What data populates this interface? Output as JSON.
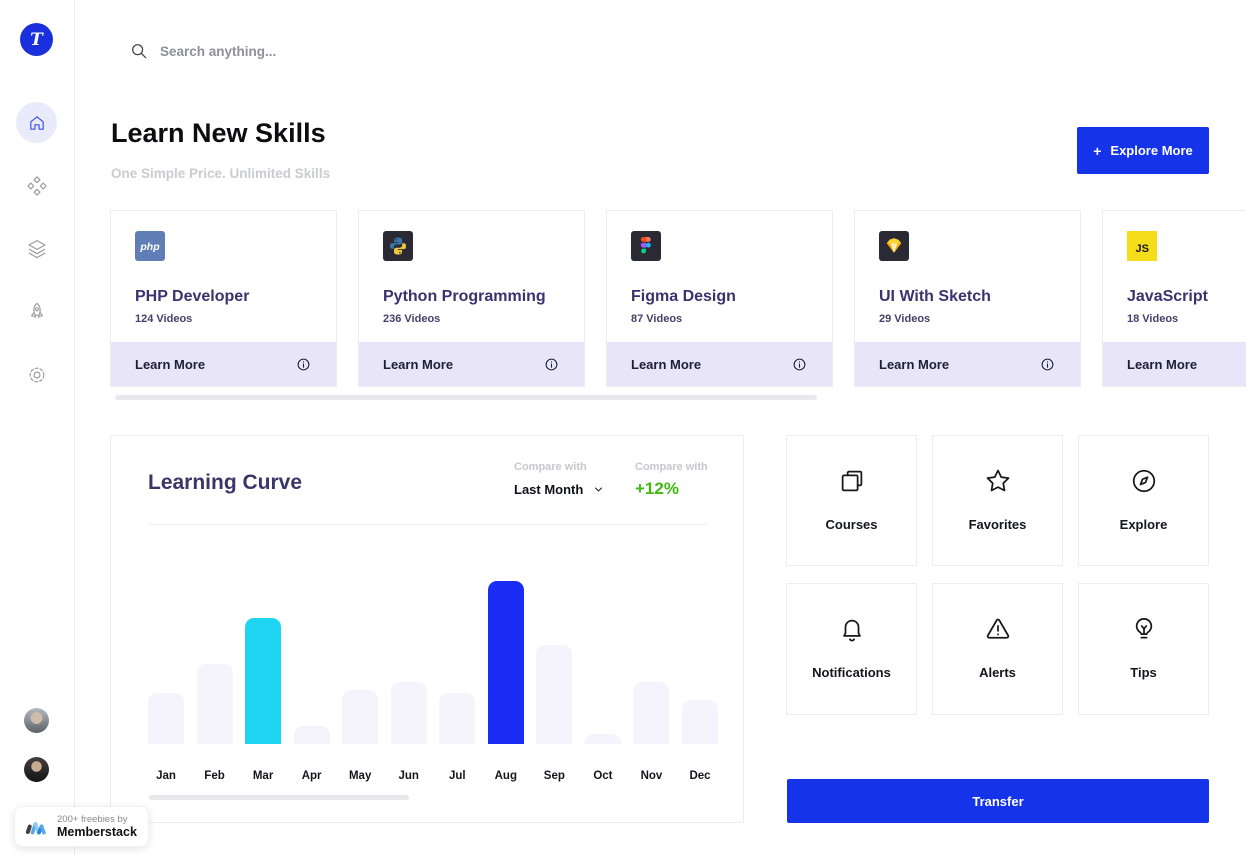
{
  "sidebar": {
    "logo_letter": "T",
    "nav": [
      {
        "icon": "home-icon",
        "active": true
      },
      {
        "icon": "categories-icon",
        "active": false
      },
      {
        "icon": "layers-icon",
        "active": false
      },
      {
        "icon": "rocket-icon",
        "active": false
      },
      {
        "icon": "settings-icon",
        "active": false
      }
    ],
    "avatars": [
      "user-avatar-1",
      "user-avatar-2"
    ]
  },
  "search": {
    "icon": "search-icon",
    "placeholder": "Search anything..."
  },
  "header": {
    "title": "Learn New Skills",
    "subtitle": "One Simple Price. Unlimited Skills",
    "explore_plus": "+",
    "explore_more_label": "Explore More"
  },
  "courses": {
    "learn_more_label": "Learn More",
    "info_icon": "info-icon",
    "items": [
      {
        "title": "PHP Developer",
        "videos": "124 Videos",
        "logo": "php"
      },
      {
        "title": "Python Programming",
        "videos": "236 Videos",
        "logo": "python"
      },
      {
        "title": "Figma Design",
        "videos": "87 Videos",
        "logo": "figma"
      },
      {
        "title": "UI With Sketch",
        "videos": "29 Videos",
        "logo": "sketch"
      },
      {
        "title": "JavaScript",
        "videos": "18 Videos",
        "logo": "js"
      }
    ]
  },
  "chart_data": {
    "type": "bar",
    "title": "Learning Curve",
    "compare_1": {
      "label": "Compare with",
      "value": "Last Month",
      "icon": "chevron-down-icon"
    },
    "compare_2": {
      "label": "Compare with",
      "value": "+12%"
    },
    "categories": [
      "Jan",
      "Feb",
      "Mar",
      "Apr",
      "May",
      "Jun",
      "Jul",
      "Aug",
      "Sep",
      "Oct",
      "Nov",
      "Dec"
    ],
    "values": [
      31,
      49,
      77,
      11,
      33,
      38,
      31,
      100,
      61,
      6,
      38,
      27
    ],
    "unit": "relative progress (Aug peak = 100)",
    "ylim": [
      0,
      100
    ],
    "grid": false,
    "legend": "none",
    "bar_default_color": "#F5F3FC",
    "bar_highlights": {
      "Mar": "#1FD5F2",
      "Aug": "#1B2DF5"
    }
  },
  "quick_actions": [
    {
      "label": "Courses",
      "icon": "copy-icon"
    },
    {
      "label": "Favorites",
      "icon": "star-icon"
    },
    {
      "label": "Explore",
      "icon": "compass-icon"
    },
    {
      "label": "Notifications",
      "icon": "bell-icon"
    },
    {
      "label": "Alerts",
      "icon": "alert-triangle-icon"
    },
    {
      "label": "Tips",
      "icon": "lightbulb-icon"
    }
  ],
  "transfer": {
    "label": "Transfer"
  },
  "badge": {
    "line1": "200+ freebies by",
    "line2": "Memberstack"
  },
  "colors": {
    "accent_blue": "#1533E8",
    "bar_cyan": "#1FD5F2",
    "bar_blue": "#1B2DF5",
    "bar_light": "#F5F3FC",
    "green_positive": "#3EBA10",
    "lavender_footer": "#E9E5F8",
    "home_circle": "#E9EBFA"
  }
}
